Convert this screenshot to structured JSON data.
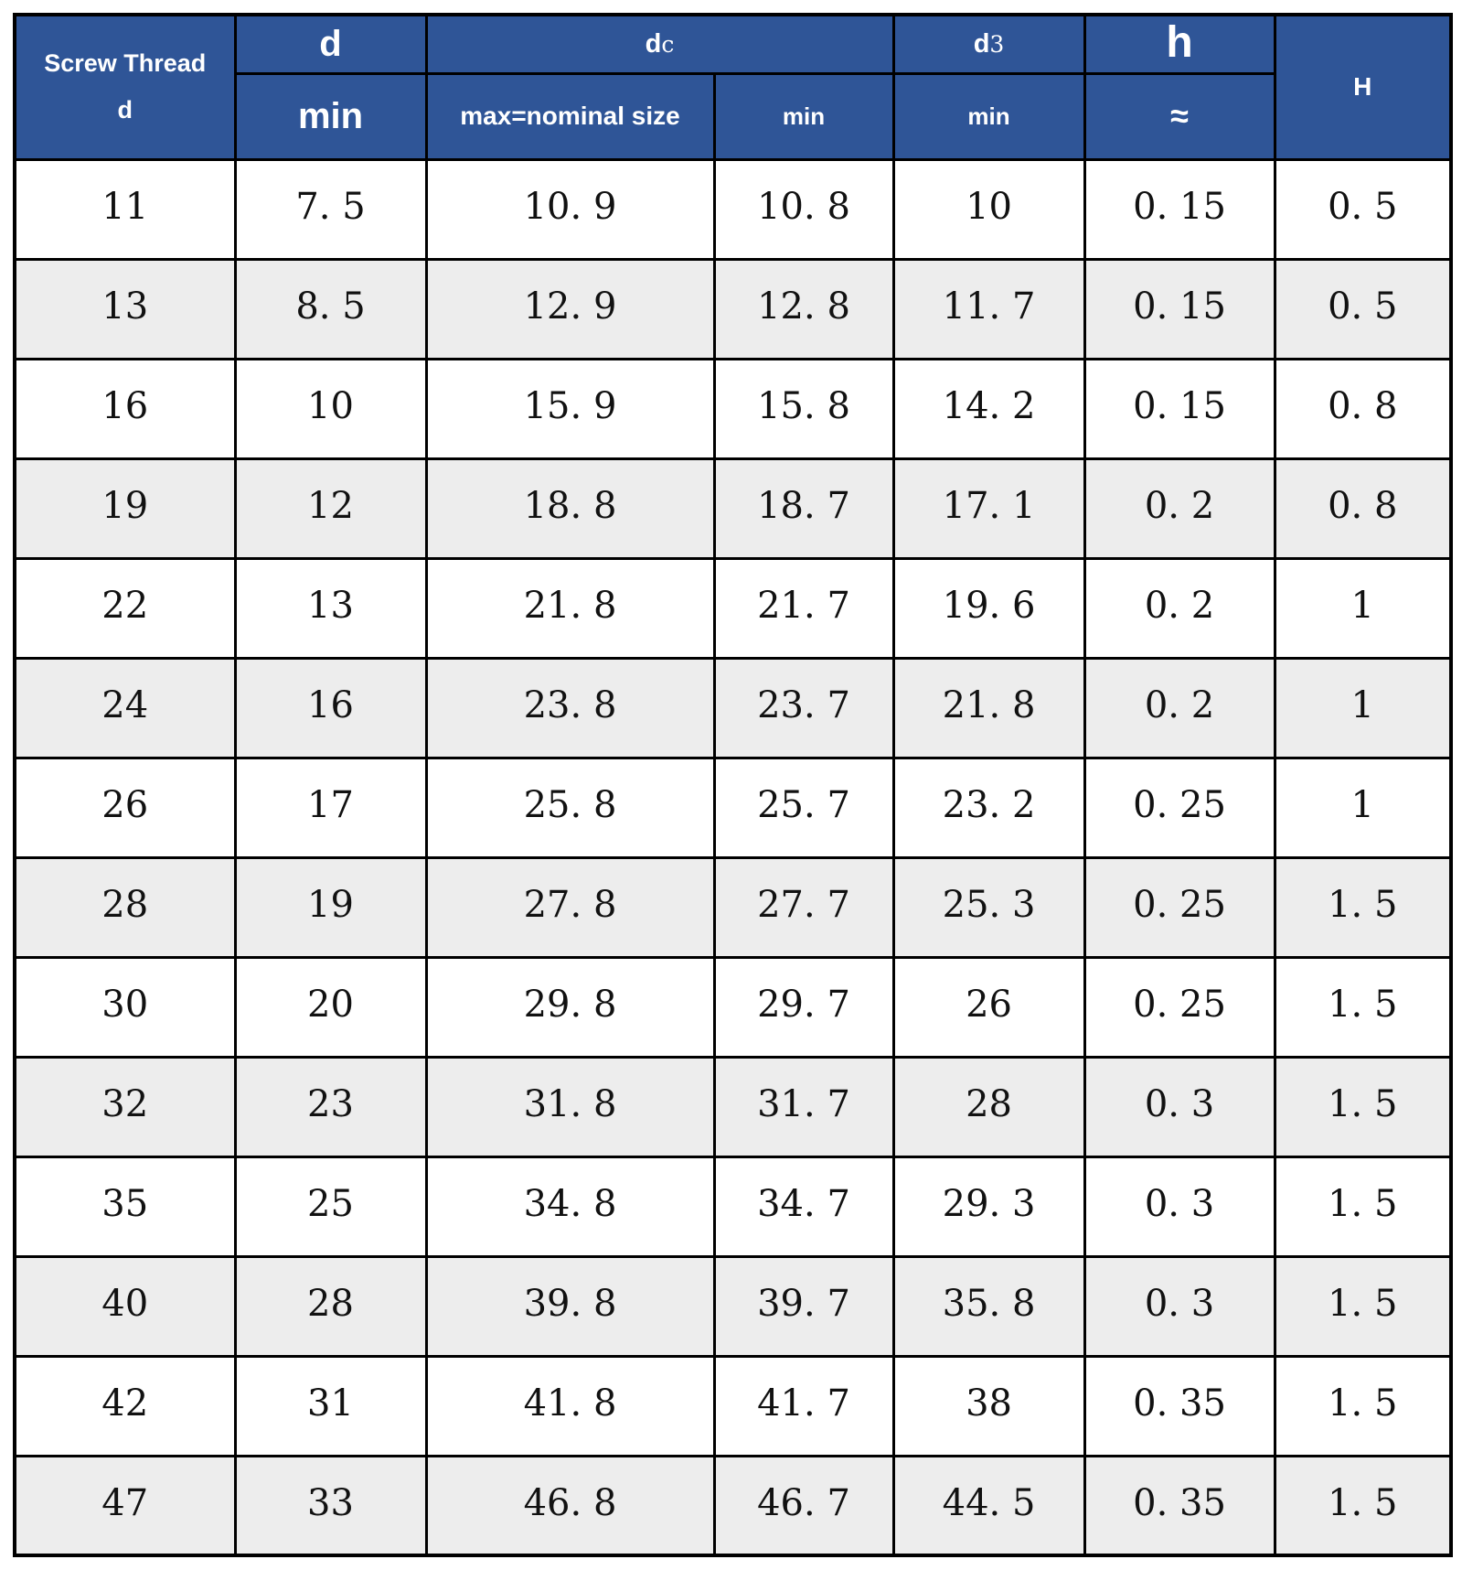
{
  "colors": {
    "header_bg": "#2F5597",
    "header_text": "#FFFFFF",
    "row_bg": "#FFFFFF",
    "row_alt_bg": "#EDEDED",
    "border_color": "#000000",
    "cell_text": "#111111"
  },
  "header": {
    "screw_thread": {
      "line1": "Screw Thread",
      "line2": "d"
    },
    "d": {
      "label": "d",
      "sub": "min"
    },
    "dc": {
      "label_main": "d",
      "label_sub": "c",
      "col_max": "max=nominal size",
      "col_min": "min"
    },
    "d3": {
      "label_main": "d",
      "label_sub": "3",
      "sub": "min"
    },
    "h": {
      "label": "h",
      "sub": "≈"
    },
    "H": {
      "label": "H"
    }
  },
  "columns": [
    "screw-thread-d",
    "d-min",
    "dc-max-nominal-size",
    "dc-min",
    "d3-min",
    "h-approx",
    "H"
  ],
  "rows": [
    [
      11,
      7.5,
      10.9,
      10.8,
      10,
      0.15,
      0.5
    ],
    [
      13,
      8.5,
      12.9,
      12.8,
      11.7,
      0.15,
      0.5
    ],
    [
      16,
      10,
      15.9,
      15.8,
      14.2,
      0.15,
      0.8
    ],
    [
      19,
      12,
      18.8,
      18.7,
      17.1,
      0.2,
      0.8
    ],
    [
      22,
      13,
      21.8,
      21.7,
      19.6,
      0.2,
      1
    ],
    [
      24,
      16,
      23.8,
      23.7,
      21.8,
      0.2,
      1
    ],
    [
      26,
      17,
      25.8,
      25.7,
      23.2,
      0.25,
      1
    ],
    [
      28,
      19,
      27.8,
      27.7,
      25.3,
      0.25,
      1.5
    ],
    [
      30,
      20,
      29.8,
      29.7,
      26,
      0.25,
      1.5
    ],
    [
      32,
      23,
      31.8,
      31.7,
      28,
      0.3,
      1.5
    ],
    [
      35,
      25,
      34.8,
      34.7,
      29.3,
      0.3,
      1.5
    ],
    [
      40,
      28,
      39.8,
      39.7,
      35.8,
      0.3,
      1.5
    ],
    [
      42,
      31,
      41.8,
      41.7,
      38,
      0.35,
      1.5
    ],
    [
      47,
      33,
      46.8,
      46.7,
      44.5,
      0.35,
      1.5
    ]
  ],
  "number_format": {
    "decimal_display": ". "
  }
}
